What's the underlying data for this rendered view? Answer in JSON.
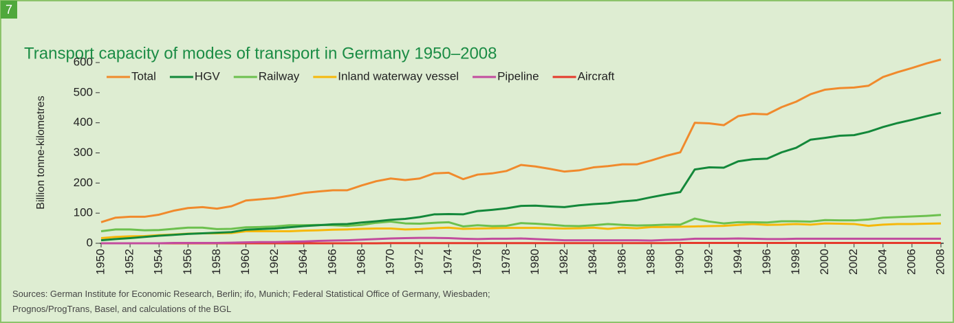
{
  "badge": "7",
  "chart_data": {
    "type": "line",
    "title": "Transport capacity of modes of transport in Germany 1950–2008",
    "y_label": "Billion tonne-kilometres",
    "source": [
      "Sources: German Institute for Economic Research, Berlin; ifo, Munich; Federal Statistical Office of Germany, Wiesbaden;",
      "Prognos/ProgTrans, Basel, and calculations of the BGL"
    ],
    "x": [
      1950,
      1951,
      1952,
      1953,
      1954,
      1955,
      1956,
      1957,
      1958,
      1959,
      1960,
      1961,
      1962,
      1963,
      1964,
      1965,
      1966,
      1967,
      1968,
      1969,
      1970,
      1971,
      1972,
      1973,
      1974,
      1975,
      1976,
      1977,
      1978,
      1979,
      1980,
      1981,
      1982,
      1983,
      1984,
      1985,
      1986,
      1987,
      1988,
      1989,
      1990,
      1991,
      1992,
      1993,
      1994,
      1995,
      1996,
      1997,
      1998,
      1999,
      2000,
      2001,
      2002,
      2003,
      2004,
      2005,
      2006,
      2007,
      2008
    ],
    "xlim": [
      1950,
      2008
    ],
    "xticks": [
      1950,
      1952,
      1954,
      1956,
      1958,
      1960,
      1962,
      1964,
      1966,
      1968,
      1970,
      1972,
      1974,
      1976,
      1978,
      1980,
      1982,
      1984,
      1986,
      1988,
      1990,
      1992,
      1994,
      1996,
      1998,
      2000,
      2002,
      2004,
      2006,
      2008
    ],
    "ylim": [
      0,
      600
    ],
    "yticks": [
      0,
      100,
      200,
      300,
      400,
      500,
      600
    ],
    "legend": "top",
    "series": [
      {
        "name": "Total",
        "color": "#f08a2c",
        "values": [
          70,
          85,
          88,
          88,
          95,
          108,
          117,
          120,
          115,
          123,
          142,
          146,
          150,
          158,
          167,
          172,
          176,
          176,
          192,
          206,
          215,
          210,
          215,
          232,
          234,
          213,
          228,
          232,
          240,
          260,
          255,
          247,
          238,
          242,
          252,
          256,
          262,
          262,
          275,
          290,
          302,
          400,
          398,
          392,
          422,
          430,
          428,
          452,
          470,
          495,
          510,
          515,
          517,
          523,
          552,
          568,
          582,
          597,
          610
        ]
      },
      {
        "name": "HGV",
        "color": "#13883a",
        "values": [
          10,
          14,
          17,
          21,
          25,
          28,
          31,
          33,
          35,
          37,
          45,
          47,
          49,
          53,
          57,
          60,
          63,
          64,
          69,
          73,
          78,
          81,
          87,
          96,
          97,
          96,
          107,
          111,
          116,
          124,
          125,
          122,
          120,
          126,
          130,
          133,
          139,
          143,
          153,
          162,
          170,
          245,
          252,
          251,
          272,
          279,
          281,
          302,
          317,
          344,
          350,
          357,
          359,
          370,
          386,
          399,
          410,
          422,
          433
        ]
      },
      {
        "name": "Railway",
        "color": "#6cc04e",
        "values": [
          40,
          46,
          46,
          43,
          44,
          48,
          52,
          52,
          47,
          48,
          53,
          54,
          56,
          60,
          60,
          61,
          60,
          58,
          61,
          68,
          72,
          66,
          65,
          68,
          70,
          56,
          60,
          57,
          58,
          67,
          65,
          62,
          58,
          57,
          60,
          64,
          61,
          59,
          60,
          62,
          62,
          82,
          72,
          66,
          70,
          70,
          69,
          73,
          73,
          72,
          77,
          76,
          76,
          79,
          85,
          87,
          89,
          91,
          94
        ]
      },
      {
        "name": "Inland waterway vessel",
        "color": "#f6b80a",
        "values": [
          17,
          21,
          23,
          24,
          27,
          29,
          32,
          33,
          33,
          34,
          40,
          40,
          40,
          40,
          42,
          43,
          45,
          46,
          48,
          49,
          49,
          46,
          47,
          50,
          52,
          48,
          49,
          50,
          51,
          51,
          51,
          50,
          49,
          50,
          52,
          48,
          52,
          50,
          54,
          54,
          55,
          56,
          57,
          58,
          61,
          64,
          61,
          62,
          64,
          62,
          66,
          65,
          64,
          58,
          62,
          64,
          64,
          65,
          66
        ]
      },
      {
        "name": "Pipeline",
        "color": "#c24b9e",
        "values": [
          0,
          0,
          0,
          0,
          0,
          1,
          1,
          1,
          1,
          2,
          3,
          4,
          4,
          5,
          6,
          8,
          9,
          10,
          12,
          14,
          16,
          17,
          18,
          18,
          17,
          15,
          14,
          15,
          15,
          16,
          14,
          12,
          10,
          10,
          10,
          10,
          10,
          10,
          9,
          11,
          12,
          15,
          15,
          15,
          16,
          15,
          14,
          14,
          15,
          15,
          15,
          15,
          15,
          15,
          15,
          15,
          15,
          15,
          15
        ]
      },
      {
        "name": "Aircraft",
        "color": "#e5392b",
        "values": [
          0,
          0,
          0,
          0,
          0,
          0,
          0,
          0,
          0,
          0,
          0,
          0,
          0,
          0,
          0,
          0,
          0,
          0,
          0,
          0,
          0.5,
          0.5,
          0.5,
          0.5,
          0.5,
          0.5,
          0.5,
          0.5,
          0.5,
          0.5,
          0.5,
          0.5,
          0.5,
          0.5,
          0.5,
          0.5,
          0.5,
          0.5,
          0.5,
          0.5,
          1,
          1,
          1,
          1,
          1,
          1,
          1,
          1,
          1,
          1,
          1,
          1,
          1,
          1,
          1,
          1,
          1,
          1,
          1
        ]
      }
    ]
  }
}
